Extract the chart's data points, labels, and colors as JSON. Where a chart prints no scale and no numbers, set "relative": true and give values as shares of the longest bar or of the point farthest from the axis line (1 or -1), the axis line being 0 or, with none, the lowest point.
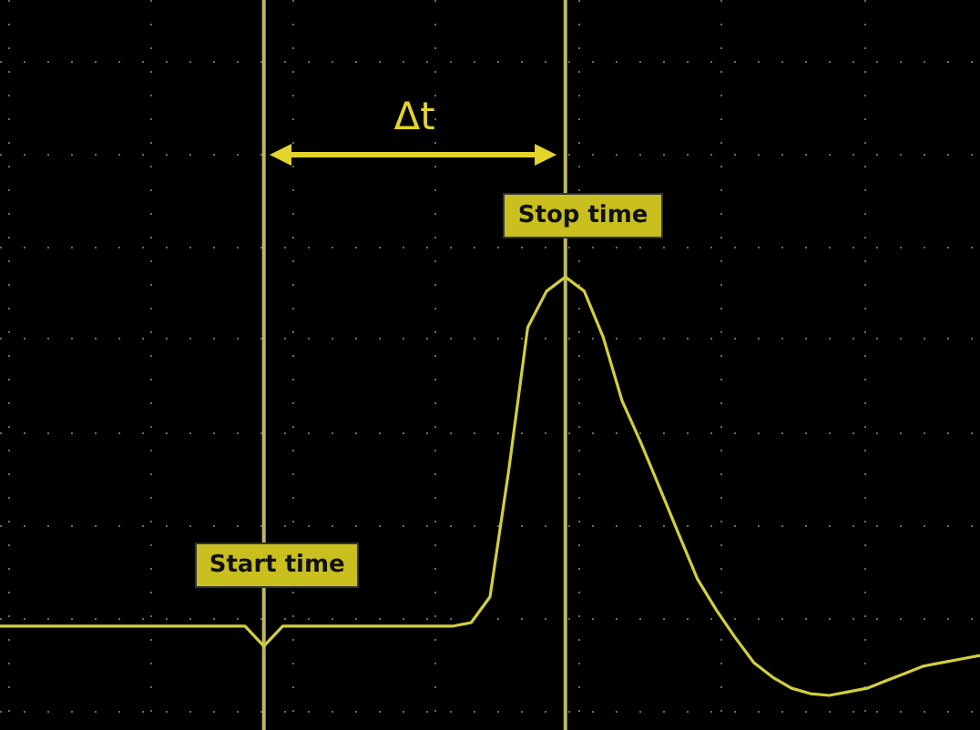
{
  "chart_data": {
    "type": "line",
    "relative": true,
    "grid": true,
    "categories": [
      null,
      null,
      null,
      null,
      null,
      null,
      null,
      null,
      null,
      null,
      null,
      null,
      null,
      null,
      null,
      null,
      null,
      null,
      null,
      null,
      null,
      null,
      null,
      null,
      null,
      null,
      null,
      null,
      null,
      null,
      null,
      null,
      null,
      null,
      null,
      null,
      null,
      null,
      null,
      null,
      null,
      null,
      null,
      null,
      null,
      null,
      null,
      null,
      null,
      null,
      null,
      null,
      null
    ],
    "series": [
      {
        "color": "#d2cf3c",
        "values": [
          -0.806,
          -0.806,
          -0.806,
          -0.806,
          -0.806,
          -0.806,
          -0.806,
          -0.806,
          -0.806,
          -0.806,
          -0.806,
          -0.806,
          -0.806,
          -0.806,
          -0.862,
          -0.806,
          -0.806,
          -0.806,
          -0.806,
          -0.806,
          -0.806,
          -0.806,
          -0.806,
          -0.806,
          -0.806,
          -0.796,
          -0.724,
          -0.367,
          0.031,
          0.133,
          0.173,
          0.133,
          0.005,
          -0.173,
          -0.291,
          -0.418,
          -0.546,
          -0.673,
          -0.76,
          -0.837,
          -0.908,
          -0.949,
          -0.98,
          -0.995,
          -1,
          -0.99,
          -0.98,
          -0.959,
          -0.939,
          -0.918,
          -0.908,
          -0.898,
          -0.888
        ]
      }
    ],
    "annotations": [
      "Δt",
      "Start time",
      "Stop time"
    ]
  }
}
